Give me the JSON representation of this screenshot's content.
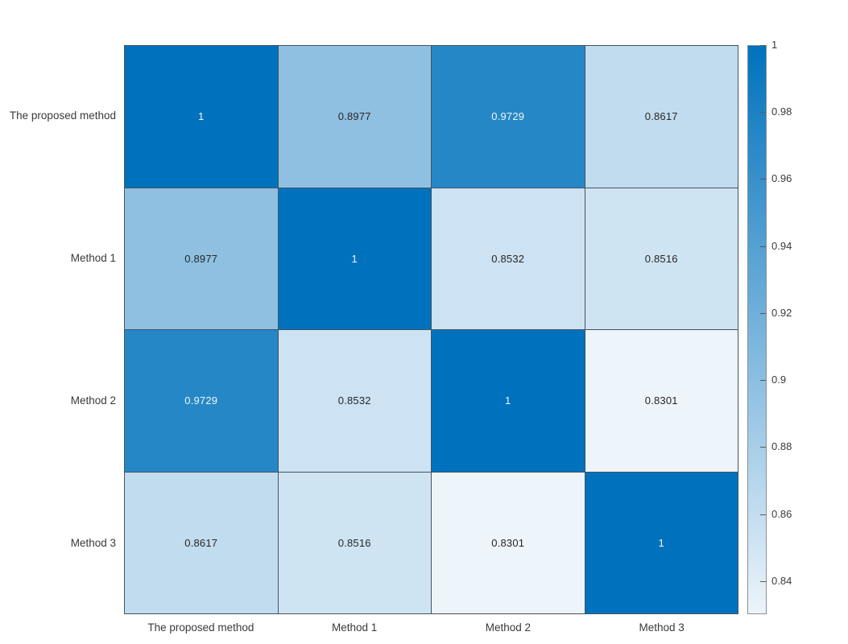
{
  "figure": {
    "background": "#FFFFFF",
    "grid_line_color": "#44525F",
    "axis_text_color": "#3A3A3A",
    "cell_text_dark": "#262626",
    "cell_text_light": "#F2F6F9",
    "colorbar_outline": "#8A9096",
    "tick_mark_color": "#5A5A5A"
  },
  "chart_data": {
    "type": "heatmap",
    "title": "",
    "xlabel": "",
    "ylabel": "",
    "categories": [
      "The proposed method",
      "Method 1",
      "Method 2",
      "Method 3"
    ],
    "matrix": [
      [
        1,
        0.8977,
        0.9729,
        0.8617
      ],
      [
        0.8977,
        1,
        0.8532,
        0.8516
      ],
      [
        0.9729,
        0.8532,
        1,
        0.8301
      ],
      [
        0.8617,
        0.8516,
        0.8301,
        1
      ]
    ],
    "cell_labels": [
      [
        "1",
        "0.8977",
        "0.9729",
        "0.8617"
      ],
      [
        "0.8977",
        "1",
        "0.8532",
        "0.8516"
      ],
      [
        "0.9729",
        "0.8532",
        "1",
        "0.8301"
      ],
      [
        "0.8617",
        "0.8516",
        "0.8301",
        "1"
      ]
    ],
    "colormap": {
      "low_color": "#EDF4FA",
      "high_color": "#0072BD",
      "cmin": 0.8301,
      "cmax": 1
    },
    "colorbar": {
      "position": "right",
      "tick_labels": [
        "1",
        "0.98",
        "0.96",
        "0.94",
        "0.92",
        "0.9",
        "0.88",
        "0.86",
        "0.84"
      ],
      "tick_values": [
        1,
        0.98,
        0.96,
        0.94,
        0.92,
        0.9,
        0.88,
        0.86,
        0.84
      ]
    },
    "grid": true,
    "legend_position": "right-colorbar"
  }
}
